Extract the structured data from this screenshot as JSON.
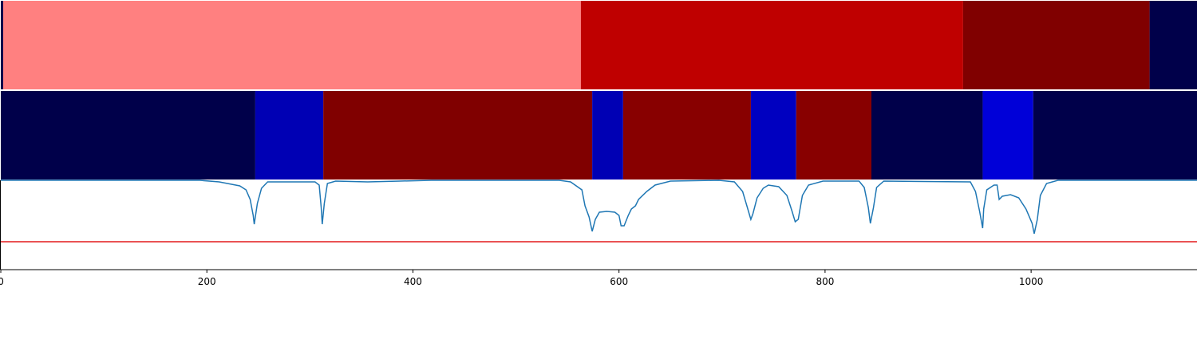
{
  "chart_data": [
    {
      "type": "segments",
      "xlim": [
        0,
        1161
      ],
      "segments": [
        {
          "start": 0,
          "end": 2.3,
          "color": "#00004a"
        },
        {
          "start": 2.3,
          "end": 563,
          "color": "#ff8080"
        },
        {
          "start": 563,
          "end": 934,
          "color": "#bf0000"
        },
        {
          "start": 934,
          "end": 1115,
          "color": "#800000"
        },
        {
          "start": 1115,
          "end": 1161,
          "color": "#00004a"
        }
      ]
    },
    {
      "type": "segments",
      "xlim": [
        0,
        1161
      ],
      "segments": [
        {
          "start": 0,
          "end": 247,
          "color": "#00004a"
        },
        {
          "start": 247,
          "end": 313,
          "color": "#0000b4"
        },
        {
          "start": 313,
          "end": 574,
          "color": "#800000"
        },
        {
          "start": 574,
          "end": 604,
          "color": "#0000b4"
        },
        {
          "start": 604,
          "end": 728,
          "color": "#880000"
        },
        {
          "start": 728,
          "end": 772,
          "color": "#0000c0"
        },
        {
          "start": 772,
          "end": 845,
          "color": "#880000"
        },
        {
          "start": 845,
          "end": 953,
          "color": "#00004a"
        },
        {
          "start": 953,
          "end": 1002,
          "color": "#0000d8"
        },
        {
          "start": 1002,
          "end": 1161,
          "color": "#00004a"
        }
      ]
    },
    {
      "type": "line",
      "xlim": [
        0,
        1161
      ],
      "ylim": [
        0,
        112
      ],
      "color": "#1f77b4",
      "xticks": [
        0,
        200,
        400,
        600,
        800,
        1000
      ],
      "hline": {
        "value": 35,
        "color": "#e41a1c"
      },
      "x": [
        0,
        193,
        212,
        224,
        232,
        238,
        242,
        245,
        246,
        249,
        253,
        259,
        305,
        309,
        311,
        312,
        314,
        317,
        325,
        356,
        387,
        418,
        542,
        553,
        564,
        567,
        571,
        574,
        577,
        581,
        588,
        596,
        600,
        602,
        605,
        609,
        612,
        616,
        619,
        627,
        635,
        650,
        697,
        712,
        720,
        725,
        728,
        730,
        734,
        740,
        745,
        755,
        763,
        768,
        771,
        774,
        778,
        784,
        798,
        833,
        838,
        842,
        844,
        847,
        850,
        857,
        941,
        946,
        950,
        953,
        954,
        957,
        964,
        967,
        969,
        972,
        980,
        988,
        995,
        1001,
        1003,
        1006,
        1009,
        1015,
        1026,
        1161
      ],
      "values": [
        112,
        112,
        110,
        107,
        105,
        100,
        88,
        68,
        57,
        83,
        102,
        110,
        110,
        106,
        78,
        57,
        83,
        108,
        111,
        110,
        111,
        112,
        112,
        110,
        100,
        80,
        66,
        48,
        63,
        72,
        73,
        72,
        68,
        55,
        55,
        68,
        76,
        80,
        88,
        98,
        106,
        111,
        112,
        110,
        98,
        76,
        63,
        70,
        90,
        102,
        106,
        104,
        93,
        73,
        60,
        63,
        93,
        106,
        111,
        111,
        103,
        78,
        58,
        78,
        103,
        111,
        110,
        98,
        73,
        52,
        76,
        100,
        106,
        106,
        88,
        92,
        94,
        90,
        76,
        58,
        45,
        63,
        93,
        108,
        112,
        112
      ]
    }
  ]
}
